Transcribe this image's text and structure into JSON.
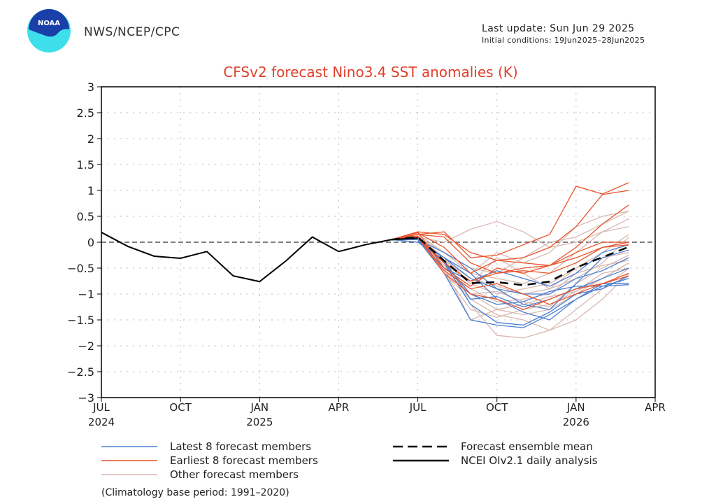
{
  "header": {
    "org": "NWS/NCEP/CPC",
    "last_update": "Last update: Sun Jun 29 2025",
    "initial_conditions": "Initial conditions: 19Jun2025–28Jun2025",
    "logo_text": "NOAA"
  },
  "colors": {
    "latest": "#4a7fd0",
    "earliest": "#e8552e",
    "other": "#d9b9b1",
    "mean": "#000000",
    "observed": "#000000",
    "title": "#e0402a"
  },
  "chart_data": {
    "type": "line",
    "title": "CFSv2 forecast Nino3.4 SST anomalies (K)",
    "ylim": [
      -3,
      3
    ],
    "yticks": [
      "3",
      "2.5",
      "2",
      "1.5",
      "1",
      "0.5",
      "0",
      "−0.5",
      "−1",
      "−1.5",
      "−2",
      "−2.5",
      "−3"
    ],
    "xlim": [
      "2024-07",
      "2026-04"
    ],
    "xticks": [
      {
        "label": "JUL",
        "year": "2024"
      },
      {
        "label": "OCT",
        "year": ""
      },
      {
        "label": "JAN",
        "year": "2025"
      },
      {
        "label": "APR",
        "year": ""
      },
      {
        "label": "JUL",
        "year": ""
      },
      {
        "label": "OCT",
        "year": ""
      },
      {
        "label": "JAN",
        "year": "2026"
      },
      {
        "label": "APR",
        "year": ""
      }
    ],
    "grid": true,
    "zero_line": "dashed",
    "observed": {
      "x": [
        "2024-07",
        "2024-08",
        "2024-09",
        "2024-10",
        "2024-11",
        "2024-12",
        "2025-01",
        "2025-02",
        "2025-03",
        "2025-04",
        "2025-05",
        "2025-06",
        "2025-07"
      ],
      "values": [
        0.19,
        -0.08,
        -0.27,
        -0.31,
        -0.18,
        -0.65,
        -0.76,
        -0.36,
        0.1,
        -0.18,
        -0.05,
        0.05,
        0.08
      ]
    },
    "forecast_x": [
      "2025-06",
      "2025-07",
      "2025-08",
      "2025-09",
      "2025-10",
      "2025-11",
      "2025-12",
      "2026-01",
      "2026-02",
      "2026-03"
    ],
    "ensemble_mean": [
      0.05,
      0.1,
      -0.36,
      -0.79,
      -0.77,
      -0.83,
      -0.76,
      -0.49,
      -0.29,
      -0.09
    ],
    "earliest_members": [
      [
        0.05,
        0.15,
        0.2,
        -0.3,
        -0.25,
        -0.05,
        0.15,
        1.08,
        0.93,
        1.15
      ],
      [
        0.05,
        0.2,
        0.15,
        -0.2,
        -0.35,
        -0.3,
        -0.1,
        0.3,
        0.92,
        1.0
      ],
      [
        0.05,
        0.15,
        0.1,
        -0.4,
        -0.6,
        -0.5,
        -0.45,
        -0.1,
        0.35,
        0.72
      ],
      [
        0.05,
        0.18,
        -0.1,
        -0.6,
        -0.35,
        -0.4,
        -0.45,
        -0.3,
        -0.1,
        0.0
      ],
      [
        0.05,
        0.1,
        -0.4,
        -0.75,
        -0.6,
        -0.55,
        -0.6,
        -0.4,
        -0.1,
        -0.05
      ],
      [
        0.05,
        0.12,
        -0.55,
        -0.9,
        -0.8,
        -1.0,
        -1.2,
        -1.0,
        -0.8,
        -0.6
      ],
      [
        0.05,
        0.2,
        -0.5,
        -0.85,
        -0.5,
        -0.6,
        -0.45,
        -0.2,
        0.0,
        0.0
      ],
      [
        0.05,
        0.1,
        -0.6,
        -1.0,
        -1.1,
        -1.3,
        -1.1,
        -0.9,
        -0.8,
        -0.65
      ]
    ],
    "latest_members": [
      [
        0.05,
        0.0,
        -0.3,
        -0.6,
        -1.1,
        -1.35,
        -1.5,
        -1.1,
        -0.85,
        -0.7
      ],
      [
        0.05,
        0.05,
        -0.4,
        -1.2,
        -1.55,
        -1.6,
        -1.35,
        -1.0,
        -0.9,
        -0.65
      ],
      [
        0.05,
        0.05,
        -0.6,
        -1.5,
        -1.6,
        -1.65,
        -1.4,
        -1.1,
        -0.8,
        -0.8
      ],
      [
        0.05,
        0.05,
        -0.2,
        -0.5,
        -0.9,
        -1.2,
        -1.3,
        -0.8,
        -0.3,
        -0.15
      ],
      [
        0.05,
        0.0,
        -0.35,
        -1.1,
        -1.05,
        -1.25,
        -1.1,
        -0.9,
        -0.7,
        -0.5
      ],
      [
        0.05,
        0.05,
        -0.5,
        -0.75,
        -0.55,
        -0.7,
        -0.85,
        -0.6,
        -0.2,
        -0.05
      ],
      [
        0.05,
        0.05,
        -0.4,
        -1.0,
        -1.2,
        -1.15,
        -0.95,
        -0.85,
        -0.85,
        -0.82
      ],
      [
        0.05,
        0.05,
        -0.3,
        -0.7,
        -0.9,
        -1.0,
        -1.0,
        -0.7,
        -0.55,
        -0.3
      ]
    ],
    "other_members": [
      [
        0.05,
        0.1,
        0.0,
        0.25,
        0.4,
        0.2,
        -0.1,
        0.0,
        0.2,
        0.3
      ],
      [
        0.05,
        0.1,
        -0.3,
        -1.2,
        -1.8,
        -1.85,
        -1.7,
        -1.5,
        -1.1,
        -0.6
      ],
      [
        0.05,
        0.1,
        -0.5,
        -1.5,
        -1.3,
        -1.4,
        -1.3,
        -1.0,
        -0.7,
        -0.4
      ],
      [
        0.05,
        0.1,
        -0.3,
        -0.6,
        -0.2,
        -0.4,
        -0.2,
        0.3,
        0.5,
        0.6
      ],
      [
        0.05,
        0.1,
        -0.4,
        -0.8,
        -1.0,
        -0.9,
        -0.8,
        -0.5,
        -0.3,
        -0.2
      ],
      [
        0.05,
        0.05,
        -0.6,
        -1.1,
        -1.4,
        -1.5,
        -1.7,
        -1.3,
        -0.9,
        -0.5
      ],
      [
        0.05,
        0.1,
        -0.2,
        -0.6,
        -0.7,
        -0.8,
        -0.6,
        -0.2,
        0.2,
        0.45
      ],
      [
        0.05,
        0.1,
        -0.5,
        -0.9,
        -1.15,
        -1.1,
        -1.0,
        -0.6,
        -0.45,
        -0.35
      ],
      [
        0.05,
        0.05,
        -0.3,
        -0.8,
        -0.3,
        -0.6,
        -0.9,
        -0.7,
        -0.4,
        0.1
      ],
      [
        0.05,
        0.1,
        -0.45,
        -1.0,
        -1.3,
        -1.2,
        -1.05,
        -0.95,
        -0.7,
        -0.4
      ],
      [
        0.05,
        0.15,
        -0.2,
        -0.5,
        -0.6,
        -0.3,
        0.0,
        0.1,
        0.35,
        0.6
      ],
      [
        0.05,
        0.1,
        -0.6,
        -1.3,
        -1.45,
        -1.3,
        -1.2,
        -0.95,
        -0.6,
        -0.5
      ],
      [
        0.05,
        0.1,
        -0.35,
        -0.7,
        -0.85,
        -1.0,
        -0.9,
        -0.5,
        -0.2,
        0.15
      ],
      [
        0.05,
        0.05,
        -0.55,
        -1.0,
        -0.95,
        -1.15,
        -1.25,
        -0.8,
        -0.5,
        -0.25
      ]
    ],
    "legend": {
      "latest": "Latest 8 forecast members",
      "earliest": "Earliest 8 forecast members",
      "other": "Other forecast members",
      "mean": "Forecast ensemble mean",
      "observed": "NCEI OIv2.1 daily analysis"
    },
    "footnote": "(Climatology base period: 1991–2020)"
  }
}
